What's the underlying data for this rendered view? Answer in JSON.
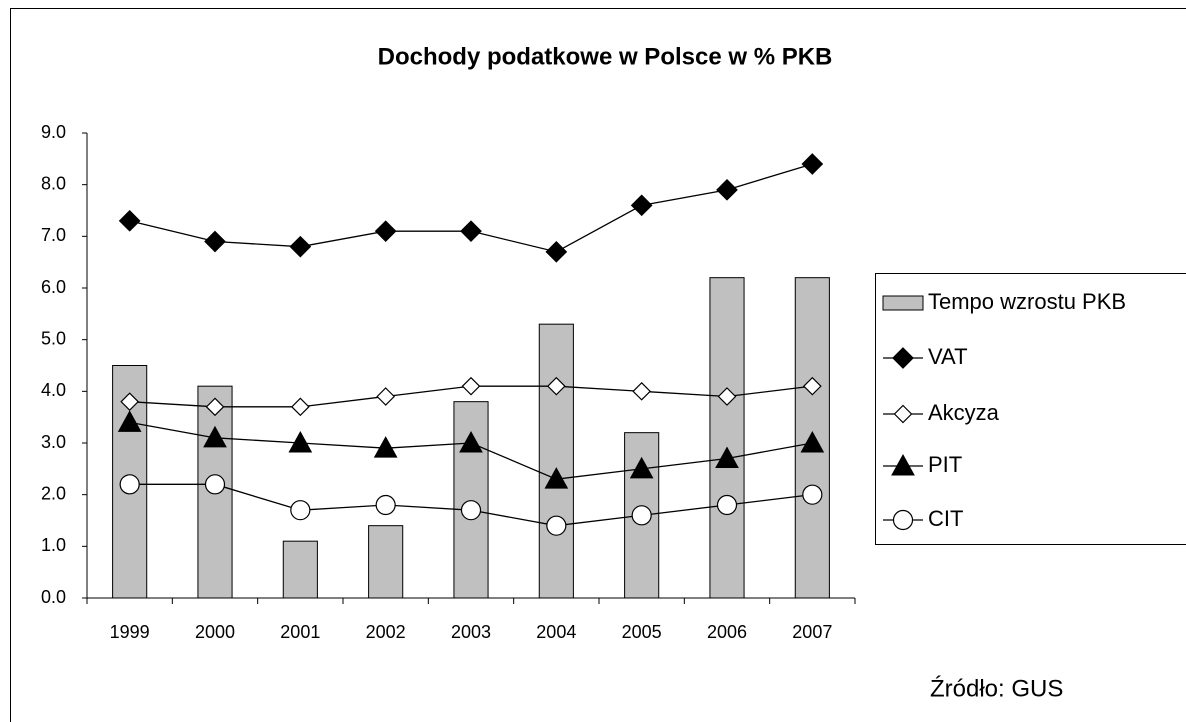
{
  "chart_data": {
    "type": "combo",
    "title": "Dochody podatkowe w Polsce w % PKB",
    "source": "Źródło: GUS",
    "categories": [
      "1999",
      "2000",
      "2001",
      "2002",
      "2003",
      "2004",
      "2005",
      "2006",
      "2007"
    ],
    "series": [
      {
        "name": "Tempo wzrostu PKB",
        "type": "bar",
        "color": "#c0c0c0",
        "values": [
          4.5,
          4.1,
          1.1,
          1.4,
          3.8,
          5.3,
          3.2,
          6.2,
          6.2
        ]
      },
      {
        "name": "VAT",
        "type": "line",
        "marker": "diamond",
        "color": "#000000",
        "values": [
          7.3,
          6.9,
          6.8,
          7.1,
          7.1,
          6.7,
          7.6,
          7.9,
          8.4
        ]
      },
      {
        "name": "Akcyza",
        "type": "line",
        "marker": "open-diamond",
        "color": "#000000",
        "values": [
          3.8,
          3.7,
          3.7,
          3.9,
          4.1,
          4.1,
          4.0,
          3.9,
          4.1
        ]
      },
      {
        "name": "PIT",
        "type": "line",
        "marker": "triangle",
        "color": "#000000",
        "values": [
          3.4,
          3.1,
          3.0,
          2.9,
          3.0,
          2.3,
          2.5,
          2.7,
          3.0
        ]
      },
      {
        "name": "CIT",
        "type": "line",
        "marker": "open-circle",
        "color": "#000000",
        "values": [
          2.2,
          2.2,
          1.7,
          1.8,
          1.7,
          1.4,
          1.6,
          1.8,
          2.0
        ]
      }
    ],
    "ylim": [
      0,
      9
    ],
    "yticks": [
      {
        "value": 0,
        "label": "0.0"
      },
      {
        "value": 1,
        "label": "1.0"
      },
      {
        "value": 2,
        "label": "2.0"
      },
      {
        "value": 3,
        "label": "3.0"
      },
      {
        "value": 4,
        "label": "4.0"
      },
      {
        "value": 5,
        "label": "5.0"
      },
      {
        "value": 6,
        "label": "6.0"
      },
      {
        "value": 7,
        "label": "7.0"
      },
      {
        "value": 8,
        "label": "8.0"
      },
      {
        "value": 9,
        "label": "9.0"
      }
    ],
    "grid": false,
    "legend": "right"
  }
}
